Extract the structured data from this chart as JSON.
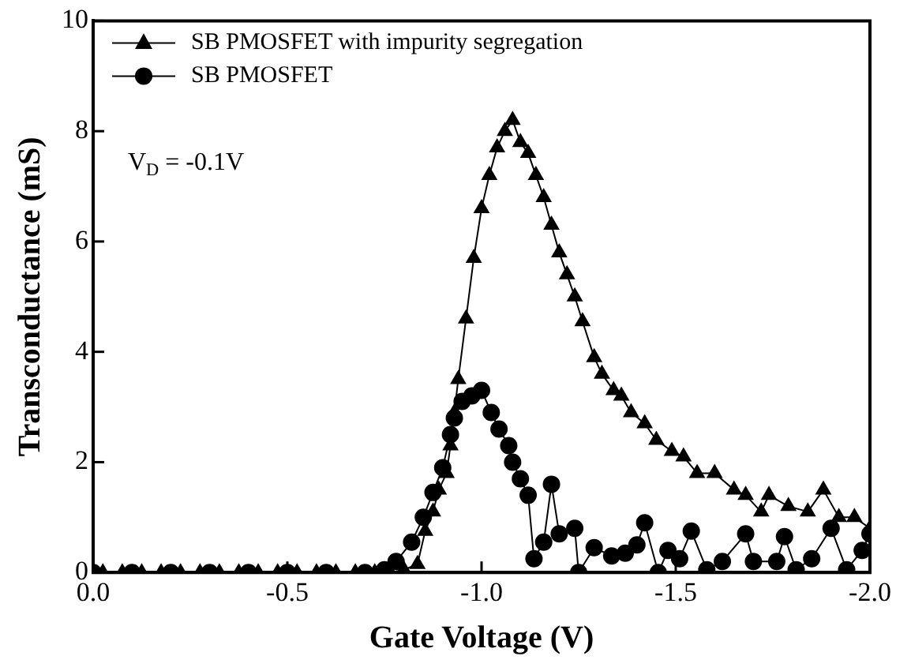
{
  "chart_data": {
    "type": "line",
    "xlabel": "Gate Voltage (V)",
    "ylabel": "Transconductance (mS)",
    "annotations": [
      "V$_{D}$ = -0.1V"
    ],
    "xlim": [
      0,
      -2
    ],
    "xticks": [
      {
        "value": 0,
        "label": "0.0"
      },
      {
        "value": -0.5,
        "label": "-0.5"
      },
      {
        "value": -1,
        "label": "-1.0"
      },
      {
        "value": -1.5,
        "label": "-1.5"
      },
      {
        "value": -2,
        "label": "-2.0"
      }
    ],
    "ylim": [
      0,
      10
    ],
    "yticks": [
      0,
      2,
      4,
      6,
      8,
      10
    ],
    "grid": false,
    "legend": "top left",
    "series": [
      {
        "name": "SB PMOSFET with impurity segregation",
        "color": "#000000",
        "marker": "triangle",
        "x": [
          -0.025,
          -0.075,
          -0.125,
          -0.175,
          -0.225,
          -0.275,
          -0.325,
          -0.375,
          -0.425,
          -0.475,
          -0.525,
          -0.575,
          -0.625,
          -0.675,
          -0.725,
          -0.765,
          -0.8,
          -0.835,
          -0.855,
          -0.875,
          -0.89,
          -0.91,
          -0.92,
          -0.93,
          -0.94,
          -0.96,
          -0.98,
          -1.0,
          -1.02,
          -1.04,
          -1.06,
          -1.08,
          -1.1,
          -1.12,
          -1.14,
          -1.16,
          -1.18,
          -1.2,
          -1.22,
          -1.24,
          -1.26,
          -1.29,
          -1.31,
          -1.34,
          -1.36,
          -1.385,
          -1.42,
          -1.45,
          -1.49,
          -1.52,
          -1.555,
          -1.6,
          -1.65,
          -1.68,
          -1.72,
          -1.74,
          -1.79,
          -1.84,
          -1.88,
          -1.92,
          -1.96,
          -2.0
        ],
        "values": [
          0,
          0,
          0,
          0,
          0,
          0,
          0,
          0,
          0,
          0,
          0,
          0,
          0,
          0,
          0,
          0,
          0.05,
          0.15,
          0.75,
          1.1,
          1.5,
          1.8,
          2.3,
          2.9,
          3.5,
          4.6,
          5.7,
          6.6,
          7.2,
          7.7,
          8.0,
          8.2,
          7.8,
          7.6,
          7.2,
          6.8,
          6.3,
          5.8,
          5.4,
          5.0,
          4.55,
          3.9,
          3.6,
          3.3,
          3.2,
          2.9,
          2.7,
          2.4,
          2.2,
          2.1,
          1.8,
          1.8,
          1.5,
          1.4,
          1.1,
          1.4,
          1.2,
          1.1,
          1.5,
          1.0,
          1.0,
          0.8
        ]
      },
      {
        "name": "SB PMOSFET",
        "color": "#000000",
        "marker": "circle",
        "x": [
          0,
          -0.1,
          -0.2,
          -0.3,
          -0.4,
          -0.5,
          -0.6,
          -0.7,
          -0.75,
          -0.78,
          -0.82,
          -0.85,
          -0.875,
          -0.9,
          -0.92,
          -0.93,
          -0.95,
          -0.975,
          -1.0,
          -1.025,
          -1.045,
          -1.07,
          -1.08,
          -1.1,
          -1.12,
          -1.135,
          -1.16,
          -1.18,
          -1.2,
          -1.24,
          -1.25,
          -1.29,
          -1.335,
          -1.37,
          -1.4,
          -1.42,
          -1.455,
          -1.48,
          -1.51,
          -1.54,
          -1.58,
          -1.62,
          -1.68,
          -1.7,
          -1.76,
          -1.78,
          -1.81,
          -1.85,
          -1.9,
          -1.94,
          -1.98,
          -2.0
        ],
        "values": [
          0,
          0,
          0,
          0,
          0,
          0,
          0,
          0,
          0.05,
          0.2,
          0.55,
          1.0,
          1.45,
          1.9,
          2.5,
          2.8,
          3.1,
          3.2,
          3.3,
          2.9,
          2.6,
          2.3,
          2.0,
          1.7,
          1.4,
          0.25,
          0.55,
          1.6,
          0.7,
          0.8,
          0,
          0.45,
          0.3,
          0.35,
          0.5,
          0.9,
          0,
          0.4,
          0.25,
          0.75,
          0.05,
          0.2,
          0.7,
          0.2,
          0.2,
          0.65,
          0.05,
          0.25,
          0.8,
          0.05,
          0.4,
          0.7
        ]
      }
    ]
  }
}
